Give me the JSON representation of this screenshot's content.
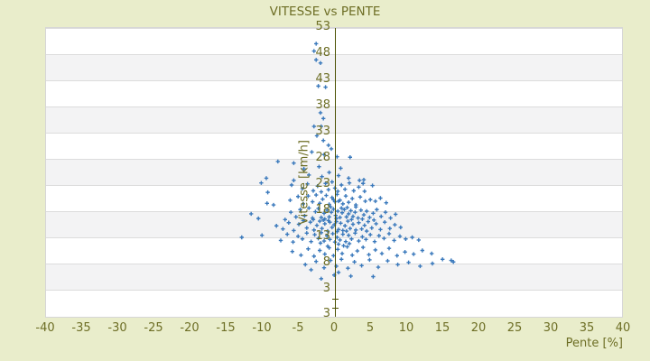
{
  "page": {
    "background_color": "#e9edcb"
  },
  "chart_data": {
    "type": "scatter",
    "title": "VITESSE vs PENTE",
    "xlabel": "Pente [%]",
    "ylabel": "Vitesse [km/h]",
    "xlim": [
      -40,
      40
    ],
    "ylim": [
      -2.5,
      53
    ],
    "x_ticks": [
      -40,
      -35,
      -30,
      -25,
      -20,
      -15,
      -10,
      -5,
      0,
      5,
      10,
      15,
      20,
      25,
      30,
      35,
      40
    ],
    "y_ticks": [
      53,
      48,
      43,
      38,
      33,
      28,
      23,
      18,
      13,
      8,
      3
    ],
    "y_axis_bottom_extra_label": "3",
    "y_axis_minor_tick_values": [
      1.3,
      -0.5
    ],
    "grid": "horizontal-stripes",
    "legend": "none",
    "marker": "plus",
    "colors": {
      "background": "#e9edcb",
      "plot_background": "#ffffff",
      "stripe": "#f3f3f4",
      "gridline": "#dcdcdc",
      "axis_line": "#4c5103",
      "text": "#6d6e25",
      "marker": "#3a79bc"
    },
    "points": [
      [
        -2.6,
        50.0
      ],
      [
        -2.9,
        48.6
      ],
      [
        -2.6,
        46.9
      ],
      [
        -2.0,
        46.3
      ],
      [
        -2.3,
        41.9
      ],
      [
        -1.3,
        41.7
      ],
      [
        -2.0,
        36.8
      ],
      [
        -1.6,
        35.7
      ],
      [
        -2.9,
        34.2
      ],
      [
        -1.9,
        34.2
      ],
      [
        -2.5,
        32.4
      ],
      [
        -1.6,
        31.5
      ],
      [
        -0.9,
        30.6
      ],
      [
        -7.9,
        27.5
      ],
      [
        -5.7,
        27.2
      ],
      [
        -3.2,
        29.3
      ],
      [
        -1.5,
        28.8
      ],
      [
        -0.5,
        29.9
      ],
      [
        0.3,
        28.4
      ],
      [
        2.1,
        28.3
      ],
      [
        -4.3,
        26.1
      ],
      [
        -2.2,
        26.5
      ],
      [
        -0.8,
        25.4
      ],
      [
        0.8,
        26.2
      ],
      [
        1.9,
        24.3
      ],
      [
        3.4,
        23.9
      ],
      [
        4.0,
        24.0
      ],
      [
        0.5,
        24.8
      ],
      [
        -1.8,
        24.6
      ],
      [
        -3.6,
        24.9
      ],
      [
        -9.5,
        24.3
      ],
      [
        -10.2,
        23.4
      ],
      [
        -6.0,
        23.0
      ],
      [
        -5.7,
        23.9
      ],
      [
        -4.5,
        22.3
      ],
      [
        -3.8,
        23.2
      ],
      [
        -3.0,
        21.9
      ],
      [
        -2.4,
        22.8
      ],
      [
        -1.9,
        21.7
      ],
      [
        -1.3,
        23.3
      ],
      [
        -0.9,
        22.1
      ],
      [
        -0.4,
        23.6
      ],
      [
        0.0,
        22.4
      ],
      [
        0.4,
        21.8
      ],
      [
        0.9,
        23.0
      ],
      [
        1.4,
        22.2
      ],
      [
        2.0,
        23.4
      ],
      [
        2.6,
        21.9
      ],
      [
        3.3,
        22.6
      ],
      [
        4.1,
        21.8
      ],
      [
        5.2,
        22.9
      ],
      [
        3.9,
        23.3
      ],
      [
        -9.3,
        21.6
      ],
      [
        -8.5,
        19.2
      ],
      [
        -9.4,
        19.5
      ],
      [
        -6.2,
        20.1
      ],
      [
        -5.1,
        20.8
      ],
      [
        -4.4,
        19.4
      ],
      [
        -3.7,
        20.9
      ],
      [
        -3.1,
        19.8
      ],
      [
        -2.6,
        21.1
      ],
      [
        -2.1,
        19.5
      ],
      [
        -1.7,
        20.3
      ],
      [
        -1.2,
        21.0
      ],
      [
        -0.8,
        19.3
      ],
      [
        -0.4,
        20.6
      ],
      [
        0.0,
        19.8
      ],
      [
        0.3,
        21.2
      ],
      [
        0.7,
        20.1
      ],
      [
        1.1,
        19.4
      ],
      [
        1.5,
        20.9
      ],
      [
        1.9,
        19.7
      ],
      [
        2.4,
        20.4
      ],
      [
        2.9,
        19.2
      ],
      [
        3.5,
        20.7
      ],
      [
        4.2,
        19.9
      ],
      [
        4.9,
        20.2
      ],
      [
        5.6,
        19.9
      ],
      [
        6.3,
        20.5
      ],
      [
        7.1,
        19.6
      ],
      [
        0.5,
        19.9
      ],
      [
        -0.2,
        20.2
      ],
      [
        -11.6,
        17.5
      ],
      [
        -10.6,
        16.6
      ],
      [
        -6.9,
        16.4
      ],
      [
        -6.1,
        17.8
      ],
      [
        -5.4,
        16.9
      ],
      [
        -4.8,
        18.3
      ],
      [
        -4.2,
        17.1
      ],
      [
        -3.6,
        18.6
      ],
      [
        -3.1,
        16.7
      ],
      [
        -2.7,
        17.9
      ],
      [
        -2.3,
        18.5
      ],
      [
        -1.9,
        16.8
      ],
      [
        -1.5,
        17.6
      ],
      [
        -1.1,
        18.2
      ],
      [
        -0.8,
        16.9
      ],
      [
        -0.5,
        17.8
      ],
      [
        -0.2,
        18.4
      ],
      [
        0.1,
        17.2
      ],
      [
        0.4,
        18.0
      ],
      [
        0.7,
        16.8
      ],
      [
        1.0,
        17.7
      ],
      [
        1.3,
        18.3
      ],
      [
        1.6,
        16.9
      ],
      [
        1.9,
        17.5
      ],
      [
        2.2,
        18.1
      ],
      [
        2.5,
        17.0
      ],
      [
        2.8,
        17.8
      ],
      [
        3.2,
        16.7
      ],
      [
        3.6,
        18.2
      ],
      [
        4.0,
        17.3
      ],
      [
        4.4,
        18.0
      ],
      [
        4.8,
        16.8
      ],
      [
        5.3,
        17.6
      ],
      [
        5.8,
        18.3
      ],
      [
        6.4,
        17.0
      ],
      [
        7.0,
        17.8
      ],
      [
        7.7,
        16.7
      ],
      [
        8.4,
        17.4
      ],
      [
        0.2,
        16.6
      ],
      [
        -0.6,
        18.8
      ],
      [
        1.7,
        18.7
      ],
      [
        2.9,
        18.8
      ],
      [
        -1.4,
        16.5
      ],
      [
        0.9,
        18.6
      ],
      [
        3.8,
        16.5
      ],
      [
        -8.1,
        15.2
      ],
      [
        -7.2,
        14.6
      ],
      [
        -6.4,
        15.8
      ],
      [
        -5.7,
        14.3
      ],
      [
        -5.0,
        15.5
      ],
      [
        -4.4,
        16.2
      ],
      [
        -3.9,
        14.8
      ],
      [
        -3.4,
        15.9
      ],
      [
        -2.9,
        14.4
      ],
      [
        -2.5,
        15.3
      ],
      [
        -2.1,
        16.1
      ],
      [
        -1.8,
        14.7
      ],
      [
        -1.4,
        15.6
      ],
      [
        -1.0,
        14.2
      ],
      [
        -0.7,
        15.9
      ],
      [
        -0.4,
        14.9
      ],
      [
        -0.1,
        15.4
      ],
      [
        0.2,
        16.0
      ],
      [
        0.5,
        14.5
      ],
      [
        0.8,
        15.7
      ],
      [
        1.1,
        14.3
      ],
      [
        1.4,
        15.2
      ],
      [
        1.8,
        16.1
      ],
      [
        2.1,
        14.7
      ],
      [
        2.5,
        15.5
      ],
      [
        2.9,
        14.4
      ],
      [
        3.3,
        15.8
      ],
      [
        3.7,
        14.6
      ],
      [
        4.1,
        15.3
      ],
      [
        4.6,
        16.0
      ],
      [
        5.1,
        14.8
      ],
      [
        5.7,
        15.6
      ],
      [
        6.3,
        14.5
      ],
      [
        6.9,
        15.9
      ],
      [
        7.6,
        14.7
      ],
      [
        8.3,
        15.4
      ],
      [
        9.1,
        14.9
      ],
      [
        1.6,
        14.2
      ],
      [
        0.3,
        14.1
      ],
      [
        -1.6,
        16.3
      ],
      [
        2.3,
        16.4
      ],
      [
        4.4,
        14.2
      ],
      [
        -3.0,
        16.4
      ],
      [
        5.4,
        16.3
      ],
      [
        -0.9,
        16.2
      ],
      [
        -12.9,
        13.0
      ],
      [
        -10.1,
        13.4
      ],
      [
        -7.5,
        12.4
      ],
      [
        -6.6,
        13.6
      ],
      [
        -5.8,
        12.1
      ],
      [
        -5.1,
        13.2
      ],
      [
        -4.5,
        12.7
      ],
      [
        -3.9,
        13.8
      ],
      [
        -3.3,
        12.2
      ],
      [
        -2.8,
        13.5
      ],
      [
        -2.3,
        12.8
      ],
      [
        -1.9,
        13.9
      ],
      [
        -1.5,
        12.3
      ],
      [
        -1.1,
        13.3
      ],
      [
        -0.7,
        12.6
      ],
      [
        -0.3,
        13.7
      ],
      [
        0.0,
        12.1
      ],
      [
        0.3,
        13.0
      ],
      [
        0.7,
        12.5
      ],
      [
        1.1,
        13.6
      ],
      [
        1.5,
        12.2
      ],
      [
        1.9,
        13.4
      ],
      [
        2.3,
        12.7
      ],
      [
        2.8,
        13.8
      ],
      [
        3.3,
        12.3
      ],
      [
        3.8,
        13.1
      ],
      [
        4.3,
        12.6
      ],
      [
        4.9,
        13.5
      ],
      [
        5.5,
        12.2
      ],
      [
        6.1,
        13.3
      ],
      [
        6.8,
        12.8
      ],
      [
        7.5,
        13.7
      ],
      [
        8.2,
        12.4
      ],
      [
        9.0,
        13.2
      ],
      [
        9.8,
        12.7
      ],
      [
        10.7,
        13.0
      ],
      [
        11.6,
        12.5
      ],
      [
        2.0,
        11.8
      ],
      [
        0.5,
        11.7
      ],
      [
        -2.0,
        11.9
      ],
      [
        -5.9,
        10.3
      ],
      [
        -4.7,
        9.6
      ],
      [
        -3.7,
        10.8
      ],
      [
        -2.9,
        9.4
      ],
      [
        -2.1,
        10.5
      ],
      [
        -1.4,
        9.8
      ],
      [
        -0.8,
        11.0
      ],
      [
        -0.2,
        9.5
      ],
      [
        0.4,
        10.7
      ],
      [
        1.0,
        9.9
      ],
      [
        1.7,
        11.2
      ],
      [
        2.4,
        9.6
      ],
      [
        3.1,
        10.4
      ],
      [
        3.9,
        11.1
      ],
      [
        4.7,
        9.7
      ],
      [
        5.6,
        10.6
      ],
      [
        6.5,
        9.9
      ],
      [
        7.5,
        10.9
      ],
      [
        8.6,
        9.5
      ],
      [
        9.7,
        10.2
      ],
      [
        10.9,
        9.8
      ],
      [
        12.1,
        10.5
      ],
      [
        13.4,
        9.9
      ],
      [
        1.2,
        11.4
      ],
      [
        -1.0,
        11.3
      ],
      [
        -4.1,
        7.8
      ],
      [
        -2.6,
        8.4
      ],
      [
        -1.5,
        7.2
      ],
      [
        -0.6,
        8.6
      ],
      [
        0.2,
        7.5
      ],
      [
        0.9,
        8.8
      ],
      [
        1.8,
        7.1
      ],
      [
        2.7,
        8.3
      ],
      [
        3.7,
        7.6
      ],
      [
        4.8,
        8.7
      ],
      [
        6.0,
        7.3
      ],
      [
        7.3,
        8.5
      ],
      [
        8.7,
        7.8
      ],
      [
        10.2,
        8.2
      ],
      [
        11.8,
        7.5
      ],
      [
        13.5,
        8.0
      ],
      [
        14.9,
        8.8
      ],
      [
        16.1,
        8.6
      ],
      [
        16.4,
        8.3
      ],
      [
        -3.3,
        6.8
      ],
      [
        0.5,
        6.3
      ],
      [
        2.2,
        5.6
      ],
      [
        5.3,
        5.5
      ],
      [
        -1.9,
        5.1
      ],
      [
        -0.1,
        5.8
      ]
    ]
  }
}
